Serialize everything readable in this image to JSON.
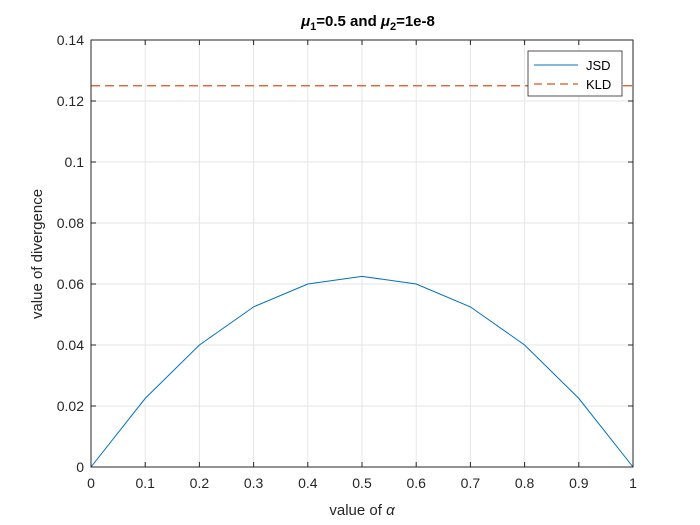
{
  "chart_data": {
    "type": "line",
    "title_parts": {
      "a": "μ",
      "a_sub": "1",
      "b": "=0.5 and ",
      "c": "μ",
      "c_sub": "2",
      "d": "=1e-8"
    },
    "xlabel_text": "value of ",
    "xlabel_symbol": "α",
    "ylabel": "value of divergence",
    "xlim": [
      0,
      1
    ],
    "ylim": [
      0,
      0.14
    ],
    "x_ticks": [
      0,
      0.1,
      0.2,
      0.3,
      0.4,
      0.5,
      0.6,
      0.7,
      0.8,
      0.9,
      1
    ],
    "x_tick_labels": [
      "0",
      "0.1",
      "0.2",
      "0.3",
      "0.4",
      "0.5",
      "0.6",
      "0.7",
      "0.8",
      "0.9",
      "1"
    ],
    "y_ticks": [
      0,
      0.02,
      0.04,
      0.06,
      0.08,
      0.1,
      0.12,
      0.14
    ],
    "y_tick_labels": [
      "0",
      "0.02",
      "0.04",
      "0.06",
      "0.08",
      "0.1",
      "0.12",
      "0.14"
    ],
    "grid": true,
    "legend_position": "top-right",
    "series": [
      {
        "name": "JSD",
        "color": "#0072BD",
        "style": "solid",
        "x": [
          0,
          0.1,
          0.2,
          0.3,
          0.4,
          0.5,
          0.6,
          0.7,
          0.8,
          0.9,
          1
        ],
        "y": [
          0,
          0.0225,
          0.04,
          0.0525,
          0.06,
          0.0625,
          0.06,
          0.0525,
          0.04,
          0.0225,
          0
        ]
      },
      {
        "name": "KLD",
        "color": "#D95319",
        "style": "dashed",
        "x": [
          0,
          1
        ],
        "y": [
          0.125,
          0.125
        ]
      }
    ]
  }
}
